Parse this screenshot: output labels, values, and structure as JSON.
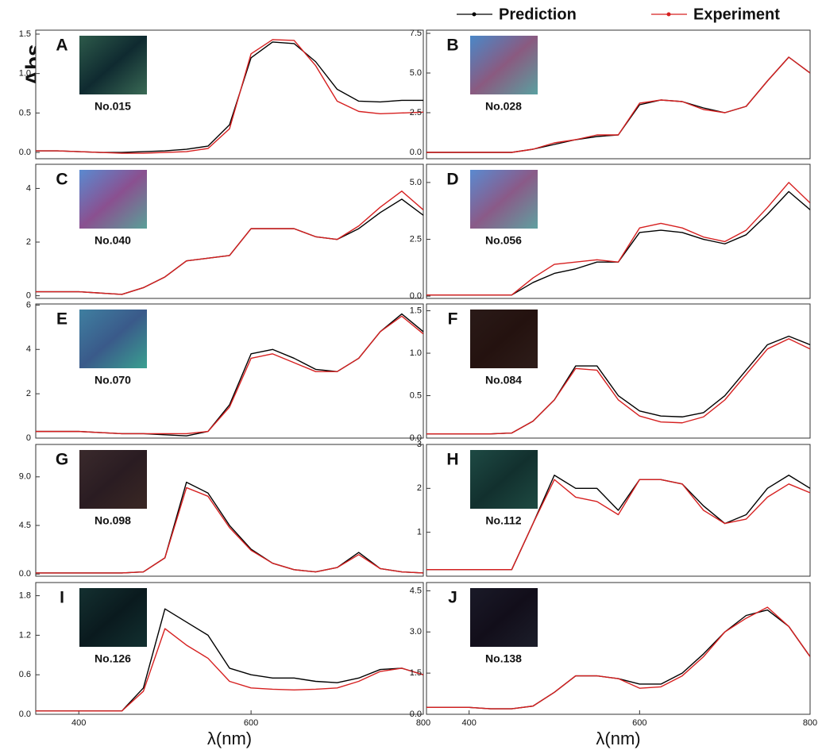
{
  "chart_data": [
    {
      "type": "line",
      "label": "A",
      "sample": "No.015",
      "y_label": "Abs.",
      "x": [
        350,
        375,
        400,
        425,
        450,
        475,
        500,
        525,
        550,
        575,
        600,
        625,
        650,
        675,
        700,
        725,
        750,
        775,
        800
      ],
      "xlim": [
        350,
        800
      ],
      "ylim": [
        -0.08,
        1.55
      ],
      "yticks": [
        {
          "value": 0,
          "label": "0.0"
        },
        0.5,
        {
          "value": 1,
          "label": "1.0"
        },
        1.5
      ],
      "series": [
        {
          "name": "Prediction",
          "color": "#000000",
          "values": [
            0.02,
            0.02,
            0.01,
            0.0,
            0.0,
            0.01,
            0.02,
            0.04,
            0.08,
            0.35,
            1.2,
            1.4,
            1.38,
            1.15,
            0.8,
            0.65,
            0.64,
            0.66,
            0.66
          ]
        },
        {
          "name": "Experiment",
          "color": "#d62020",
          "values": [
            0.02,
            0.02,
            0.01,
            0.0,
            -0.01,
            -0.01,
            0.0,
            0.01,
            0.05,
            0.3,
            1.25,
            1.43,
            1.42,
            1.1,
            0.65,
            0.52,
            0.49,
            0.5,
            0.51
          ]
        }
      ]
    },
    {
      "type": "line",
      "label": "B",
      "sample": "No.028",
      "x": [
        350,
        375,
        400,
        425,
        450,
        475,
        500,
        525,
        550,
        575,
        600,
        625,
        650,
        675,
        700,
        725,
        750,
        775,
        800
      ],
      "xlim": [
        350,
        800
      ],
      "ylim": [
        -0.4,
        7.7
      ],
      "yticks": [
        {
          "value": 0,
          "label": "0.0"
        },
        2.5,
        {
          "value": 5,
          "label": "5.0"
        },
        7.5
      ],
      "series": [
        {
          "name": "Prediction",
          "color": "#000000",
          "values": [
            0,
            0,
            0,
            0,
            0,
            0.2,
            0.5,
            0.8,
            1.0,
            1.1,
            3.0,
            3.3,
            3.2,
            2.8,
            2.5,
            2.9,
            4.5,
            6.0,
            5.0
          ]
        },
        {
          "name": "Experiment",
          "color": "#d62020",
          "values": [
            0,
            0,
            0,
            0,
            0,
            0.2,
            0.6,
            0.8,
            1.1,
            1.1,
            3.1,
            3.3,
            3.2,
            2.7,
            2.5,
            2.9,
            4.5,
            6.0,
            5.0
          ]
        }
      ]
    },
    {
      "type": "line",
      "label": "C",
      "sample": "No.040",
      "x": [
        350,
        375,
        400,
        425,
        450,
        475,
        500,
        525,
        550,
        575,
        600,
        625,
        650,
        675,
        700,
        725,
        750,
        775,
        800
      ],
      "xlim": [
        350,
        800
      ],
      "ylim": [
        -0.1,
        4.9
      ],
      "yticks": [
        0,
        2,
        4
      ],
      "series": [
        {
          "name": "Prediction",
          "color": "#000000",
          "values": [
            0.15,
            0.15,
            0.15,
            0.1,
            0.05,
            0.3,
            0.7,
            1.3,
            1.4,
            1.5,
            2.5,
            2.5,
            2.5,
            2.2,
            2.1,
            2.5,
            3.1,
            3.6,
            3.0
          ]
        },
        {
          "name": "Experiment",
          "color": "#d62020",
          "values": [
            0.15,
            0.15,
            0.15,
            0.1,
            0.05,
            0.3,
            0.7,
            1.3,
            1.4,
            1.5,
            2.5,
            2.5,
            2.5,
            2.2,
            2.1,
            2.6,
            3.3,
            3.9,
            3.2
          ]
        }
      ]
    },
    {
      "type": "line",
      "label": "D",
      "sample": "No.056",
      "x": [
        350,
        375,
        400,
        425,
        450,
        475,
        500,
        525,
        550,
        575,
        600,
        625,
        650,
        675,
        700,
        725,
        750,
        775,
        800
      ],
      "xlim": [
        350,
        800
      ],
      "ylim": [
        -0.1,
        5.8
      ],
      "yticks": [
        {
          "value": 0,
          "label": "0.0"
        },
        2.5,
        {
          "value": 5,
          "label": "5.0"
        }
      ],
      "series": [
        {
          "name": "Prediction",
          "color": "#000000",
          "values": [
            0.05,
            0.05,
            0.05,
            0.05,
            0.05,
            0.6,
            1.0,
            1.2,
            1.5,
            1.5,
            2.8,
            2.9,
            2.8,
            2.5,
            2.3,
            2.7,
            3.6,
            4.6,
            3.8
          ]
        },
        {
          "name": "Experiment",
          "color": "#d62020",
          "values": [
            0.05,
            0.05,
            0.05,
            0.05,
            0.05,
            0.8,
            1.4,
            1.5,
            1.6,
            1.5,
            3.0,
            3.2,
            3.0,
            2.6,
            2.4,
            2.9,
            3.9,
            5.0,
            4.1
          ]
        }
      ]
    },
    {
      "type": "line",
      "label": "E",
      "sample": "No.070",
      "x": [
        350,
        375,
        400,
        425,
        450,
        475,
        500,
        525,
        550,
        575,
        600,
        625,
        650,
        675,
        700,
        725,
        750,
        775,
        800
      ],
      "xlim": [
        350,
        800
      ],
      "ylim": [
        0,
        6.05
      ],
      "yticks": [
        0,
        2,
        4,
        6
      ],
      "series": [
        {
          "name": "Prediction",
          "color": "#000000",
          "values": [
            0.3,
            0.3,
            0.3,
            0.25,
            0.2,
            0.2,
            0.15,
            0.1,
            0.3,
            1.5,
            3.8,
            4.0,
            3.6,
            3.1,
            3.0,
            3.6,
            4.8,
            5.6,
            4.8
          ]
        },
        {
          "name": "Experiment",
          "color": "#d62020",
          "values": [
            0.3,
            0.3,
            0.3,
            0.25,
            0.2,
            0.2,
            0.2,
            0.2,
            0.3,
            1.4,
            3.6,
            3.8,
            3.4,
            3.0,
            3.0,
            3.6,
            4.8,
            5.5,
            4.7
          ]
        }
      ]
    },
    {
      "type": "line",
      "label": "F",
      "sample": "No.084",
      "x": [
        350,
        375,
        400,
        425,
        450,
        475,
        500,
        525,
        550,
        575,
        600,
        625,
        650,
        675,
        700,
        725,
        750,
        775,
        800
      ],
      "xlim": [
        350,
        800
      ],
      "ylim": [
        0,
        1.58
      ],
      "yticks": [
        {
          "value": 0,
          "label": "0.0"
        },
        0.5,
        {
          "value": 1,
          "label": "1.0"
        },
        1.5
      ],
      "series": [
        {
          "name": "Prediction",
          "color": "#000000",
          "values": [
            0.05,
            0.05,
            0.05,
            0.05,
            0.06,
            0.2,
            0.45,
            0.85,
            0.85,
            0.5,
            0.32,
            0.26,
            0.25,
            0.3,
            0.5,
            0.8,
            1.1,
            1.2,
            1.1
          ]
        },
        {
          "name": "Experiment",
          "color": "#d62020",
          "values": [
            0.05,
            0.05,
            0.05,
            0.05,
            0.06,
            0.2,
            0.45,
            0.82,
            0.8,
            0.45,
            0.26,
            0.19,
            0.18,
            0.25,
            0.45,
            0.75,
            1.05,
            1.17,
            1.05
          ]
        }
      ]
    },
    {
      "type": "line",
      "label": "G",
      "sample": "No.098",
      "x": [
        350,
        375,
        400,
        425,
        450,
        475,
        500,
        525,
        550,
        575,
        600,
        625,
        650,
        675,
        700,
        725,
        750,
        775,
        800
      ],
      "xlim": [
        350,
        800
      ],
      "ylim": [
        -0.2,
        12
      ],
      "yticks": [
        {
          "value": 0,
          "label": "0.0"
        },
        4.5,
        {
          "value": 9,
          "label": "9.0"
        }
      ],
      "series": [
        {
          "name": "Prediction",
          "color": "#000000",
          "values": [
            0.1,
            0.1,
            0.1,
            0.1,
            0.1,
            0.2,
            1.5,
            8.5,
            7.5,
            4.5,
            2.3,
            1.0,
            0.4,
            0.2,
            0.6,
            2.0,
            0.5,
            0.2,
            0.1
          ]
        },
        {
          "name": "Experiment",
          "color": "#d62020",
          "values": [
            0.1,
            0.1,
            0.1,
            0.1,
            0.1,
            0.2,
            1.5,
            8.0,
            7.2,
            4.3,
            2.2,
            1.0,
            0.4,
            0.2,
            0.6,
            1.8,
            0.5,
            0.2,
            0.1
          ]
        }
      ]
    },
    {
      "type": "line",
      "label": "H",
      "sample": "No.112",
      "x": [
        350,
        375,
        400,
        425,
        450,
        475,
        500,
        525,
        550,
        575,
        600,
        625,
        650,
        675,
        700,
        725,
        750,
        775,
        800
      ],
      "xlim": [
        350,
        800
      ],
      "ylim": [
        0,
        3
      ],
      "yticks": [
        1,
        2,
        3
      ],
      "series": [
        {
          "name": "Prediction",
          "color": "#000000",
          "values": [
            0.15,
            0.15,
            0.15,
            0.15,
            0.15,
            1.2,
            2.3,
            2.0,
            2.0,
            1.5,
            2.2,
            2.2,
            2.1,
            1.6,
            1.2,
            1.4,
            2.0,
            2.3,
            2.0
          ]
        },
        {
          "name": "Experiment",
          "color": "#d62020",
          "values": [
            0.15,
            0.15,
            0.15,
            0.15,
            0.15,
            1.2,
            2.2,
            1.8,
            1.7,
            1.4,
            2.2,
            2.2,
            2.1,
            1.5,
            1.2,
            1.3,
            1.8,
            2.1,
            1.9
          ]
        }
      ]
    },
    {
      "type": "line",
      "label": "I",
      "sample": "No.126",
      "x_label": "λ(nm)",
      "x": [
        350,
        375,
        400,
        425,
        450,
        475,
        500,
        525,
        550,
        575,
        600,
        625,
        650,
        675,
        700,
        725,
        750,
        775,
        800
      ],
      "xlim": [
        350,
        800
      ],
      "xticks": [
        400,
        600,
        800
      ],
      "ylim": [
        0,
        2.0
      ],
      "yticks": [
        {
          "value": 0,
          "label": "0.0"
        },
        0.6,
        1.2,
        1.8
      ],
      "series": [
        {
          "name": "Prediction",
          "color": "#000000",
          "values": [
            0.05,
            0.05,
            0.05,
            0.05,
            0.05,
            0.4,
            1.6,
            1.4,
            1.2,
            0.7,
            0.6,
            0.55,
            0.55,
            0.5,
            0.48,
            0.55,
            0.68,
            0.7,
            0.6
          ]
        },
        {
          "name": "Experiment",
          "color": "#d62020",
          "values": [
            0.05,
            0.05,
            0.05,
            0.05,
            0.05,
            0.35,
            1.3,
            1.05,
            0.85,
            0.5,
            0.4,
            0.38,
            0.37,
            0.38,
            0.4,
            0.5,
            0.65,
            0.7,
            0.6
          ]
        }
      ]
    },
    {
      "type": "line",
      "label": "J",
      "sample": "No.138",
      "x_label": "λ(nm)",
      "x": [
        350,
        375,
        400,
        425,
        450,
        475,
        500,
        525,
        550,
        575,
        600,
        625,
        650,
        675,
        700,
        725,
        750,
        775,
        800
      ],
      "xlim": [
        350,
        800
      ],
      "xticks": [
        400,
        600,
        800
      ],
      "ylim": [
        0,
        4.8
      ],
      "yticks": [
        {
          "value": 0,
          "label": "0.0"
        },
        1.5,
        {
          "value": 3,
          "label": "3.0"
        },
        4.5
      ],
      "series": [
        {
          "name": "Prediction",
          "color": "#000000",
          "values": [
            0.25,
            0.25,
            0.25,
            0.2,
            0.2,
            0.3,
            0.8,
            1.4,
            1.4,
            1.3,
            1.1,
            1.1,
            1.5,
            2.2,
            3.0,
            3.6,
            3.8,
            3.2,
            2.1
          ]
        },
        {
          "name": "Experiment",
          "color": "#d62020",
          "values": [
            0.25,
            0.25,
            0.25,
            0.2,
            0.2,
            0.3,
            0.8,
            1.4,
            1.4,
            1.3,
            0.95,
            1.0,
            1.4,
            2.1,
            3.0,
            3.5,
            3.9,
            3.2,
            2.1
          ]
        }
      ]
    }
  ]
}
